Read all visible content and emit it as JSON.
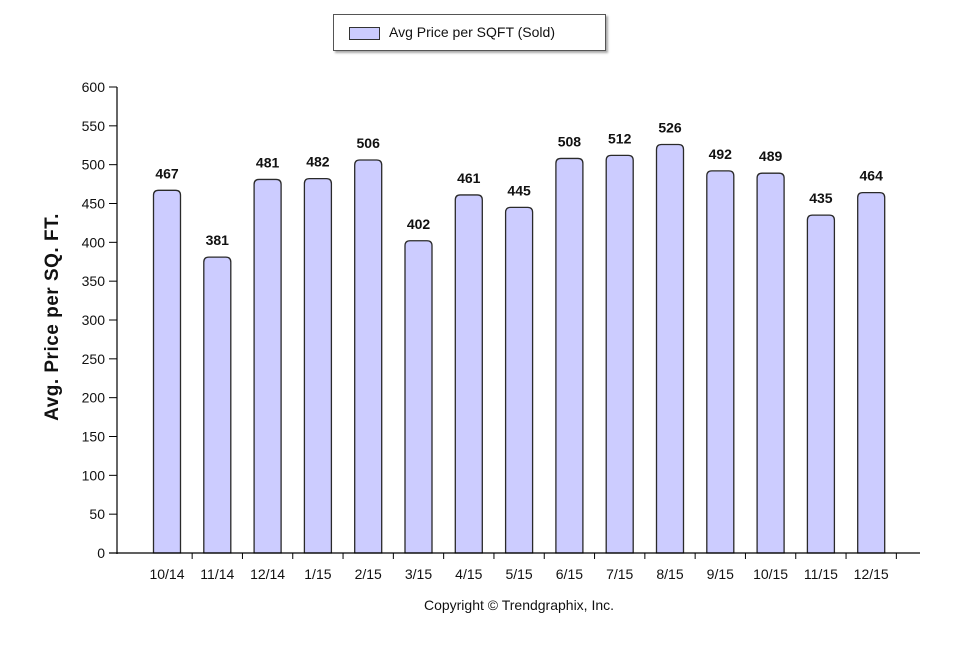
{
  "chart_data": {
    "type": "bar",
    "categories": [
      "10/14",
      "11/14",
      "12/14",
      "1/15",
      "2/15",
      "3/15",
      "4/15",
      "5/15",
      "6/15",
      "7/15",
      "8/15",
      "9/15",
      "10/15",
      "11/15",
      "12/15"
    ],
    "series": [
      {
        "name": "Avg Price per SQFT (Sold)",
        "values": [
          467,
          381,
          481,
          482,
          506,
          402,
          461,
          445,
          508,
          512,
          526,
          492,
          489,
          435,
          464
        ]
      }
    ],
    "ylabel": "Avg. Price per SQ. FT.",
    "xlabel": "",
    "ylim": [
      0,
      600
    ],
    "yticks": [
      0,
      50,
      100,
      150,
      200,
      250,
      300,
      350,
      400,
      450,
      500,
      550,
      600
    ],
    "grid": false,
    "legend": "top-center",
    "data_labels": true,
    "bar_color": "#ccccff",
    "bar_edge_color": "#2a2a2a"
  },
  "footer": {
    "copyright": "Copyright © Trendgraphix, Inc."
  }
}
